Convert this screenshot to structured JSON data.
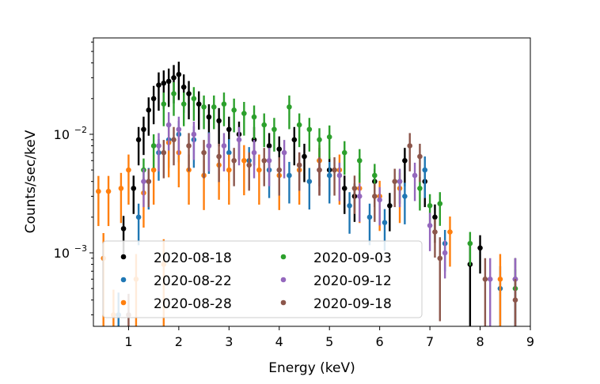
{
  "chart_data": {
    "type": "scatter",
    "title": "",
    "xlabel": "Energy (keV)",
    "ylabel": "Counts/sec/keV",
    "xlim": [
      0.3,
      9.0
    ],
    "ylim": [
      0.00024,
      0.065
    ],
    "yscale": "log",
    "grid": false,
    "legend_position": "bottom-left",
    "legend_columns": 2,
    "x_ticks": [
      1,
      2,
      3,
      4,
      5,
      6,
      7,
      8,
      9
    ],
    "y_ticks": [
      {
        "value": 0.001,
        "base": "10",
        "exp": "−3"
      },
      {
        "value": 0.01,
        "base": "10",
        "exp": "−2"
      }
    ],
    "series": [
      {
        "name": "2020-08-18",
        "color": "#000000",
        "yerr_frac": 0.28,
        "x": [
          0.9,
          1.1,
          1.2,
          1.3,
          1.4,
          1.5,
          1.6,
          1.7,
          1.8,
          1.9,
          2.0,
          2.1,
          2.2,
          2.4,
          2.6,
          2.8,
          3.0,
          3.2,
          3.5,
          3.8,
          4.0,
          4.3,
          4.5,
          4.8,
          5.0,
          5.3,
          5.5,
          5.9,
          6.2,
          6.5,
          6.9,
          7.1,
          7.8,
          8.0,
          8.7
        ],
        "y": [
          0.0016,
          0.0035,
          0.009,
          0.011,
          0.016,
          0.02,
          0.026,
          0.027,
          0.028,
          0.03,
          0.032,
          0.025,
          0.022,
          0.018,
          0.014,
          0.013,
          0.011,
          0.01,
          0.009,
          0.008,
          0.0075,
          0.009,
          0.0065,
          0.006,
          0.005,
          0.0035,
          0.003,
          0.004,
          0.0025,
          0.006,
          0.004,
          0.002,
          0.0008,
          0.0011,
          0.0006
        ]
      },
      {
        "name": "2020-08-22",
        "color": "#1f77b4",
        "yerr_frac": 0.3,
        "x": [
          0.8,
          1.2,
          1.4,
          1.6,
          1.8,
          2.0,
          2.3,
          2.6,
          3.0,
          3.4,
          3.8,
          4.2,
          4.6,
          5.0,
          5.4,
          5.8,
          6.1,
          6.5,
          6.9,
          7.3,
          8.4
        ],
        "y": [
          0.0003,
          0.002,
          0.004,
          0.007,
          0.009,
          0.01,
          0.009,
          0.008,
          0.007,
          0.006,
          0.005,
          0.0045,
          0.004,
          0.0045,
          0.0025,
          0.002,
          0.0018,
          0.003,
          0.005,
          0.0012,
          0.0005
        ]
      },
      {
        "name": "2020-08-28",
        "color": "#ff7f0e",
        "yerr_frac": 0.35,
        "x": [
          0.4,
          0.5,
          0.6,
          0.7,
          0.85,
          1.0,
          1.15,
          1.3,
          1.5,
          1.7,
          1.8,
          2.0,
          2.2,
          2.5,
          2.8,
          3.0,
          3.3,
          3.6,
          4.0,
          4.4,
          4.8,
          5.2,
          5.6,
          6.0,
          6.4,
          7.4,
          8.4
        ],
        "y": [
          0.0033,
          0.0009,
          0.0033,
          0.0003,
          0.0035,
          0.005,
          0.0006,
          0.0032,
          0.005,
          0.0008,
          0.0085,
          0.007,
          0.005,
          0.0045,
          0.0055,
          0.005,
          0.006,
          0.005,
          0.0045,
          0.005,
          0.006,
          0.005,
          0.0035,
          0.003,
          0.0035,
          0.0015,
          0.0006
        ]
      },
      {
        "name": "2020-09-03",
        "color": "#2ca02c",
        "yerr_frac": 0.25,
        "x": [
          1.3,
          1.5,
          1.7,
          1.9,
          2.1,
          2.3,
          2.5,
          2.7,
          2.9,
          3.1,
          3.3,
          3.5,
          3.7,
          3.9,
          4.2,
          4.4,
          4.6,
          4.8,
          5.0,
          5.3,
          5.6,
          5.9,
          6.4,
          6.8,
          7.0,
          7.2,
          7.8,
          8.7
        ],
        "y": [
          0.005,
          0.008,
          0.018,
          0.022,
          0.018,
          0.02,
          0.017,
          0.017,
          0.018,
          0.016,
          0.015,
          0.014,
          0.012,
          0.011,
          0.017,
          0.012,
          0.011,
          0.009,
          0.0095,
          0.007,
          0.006,
          0.0045,
          0.004,
          0.0035,
          0.0025,
          0.0026,
          0.0012,
          0.0005
        ]
      },
      {
        "name": "2020-09-12",
        "color": "#9467bd",
        "yerr_frac": 0.28,
        "x": [
          1.3,
          1.6,
          1.8,
          2.0,
          2.3,
          2.6,
          2.9,
          3.2,
          3.5,
          3.8,
          4.1,
          4.4,
          4.8,
          5.2,
          5.6,
          6.0,
          6.4,
          6.7,
          7.0,
          7.3,
          8.2,
          8.7
        ],
        "y": [
          0.004,
          0.008,
          0.012,
          0.011,
          0.01,
          0.008,
          0.008,
          0.009,
          0.007,
          0.006,
          0.007,
          0.0055,
          0.005,
          0.0045,
          0.003,
          0.0028,
          0.004,
          0.0045,
          0.0017,
          0.001,
          0.0006,
          0.0006
        ]
      },
      {
        "name": "2020-09-18",
        "color": "#8c564b",
        "yerr_frac": 0.28,
        "x": [
          1.0,
          1.4,
          1.7,
          1.9,
          2.2,
          2.5,
          2.8,
          3.1,
          3.4,
          3.7,
          4.0,
          4.4,
          4.8,
          5.1,
          5.5,
          5.9,
          6.3,
          6.6,
          6.8,
          7.1,
          7.2,
          8.1,
          8.7
        ],
        "y": [
          0.0003,
          0.004,
          0.007,
          0.009,
          0.008,
          0.007,
          0.0065,
          0.006,
          0.0055,
          0.006,
          0.005,
          0.0055,
          0.005,
          0.005,
          0.0035,
          0.003,
          0.004,
          0.008,
          0.0065,
          0.0015,
          0.0009,
          0.0006,
          0.0004
        ]
      }
    ]
  }
}
